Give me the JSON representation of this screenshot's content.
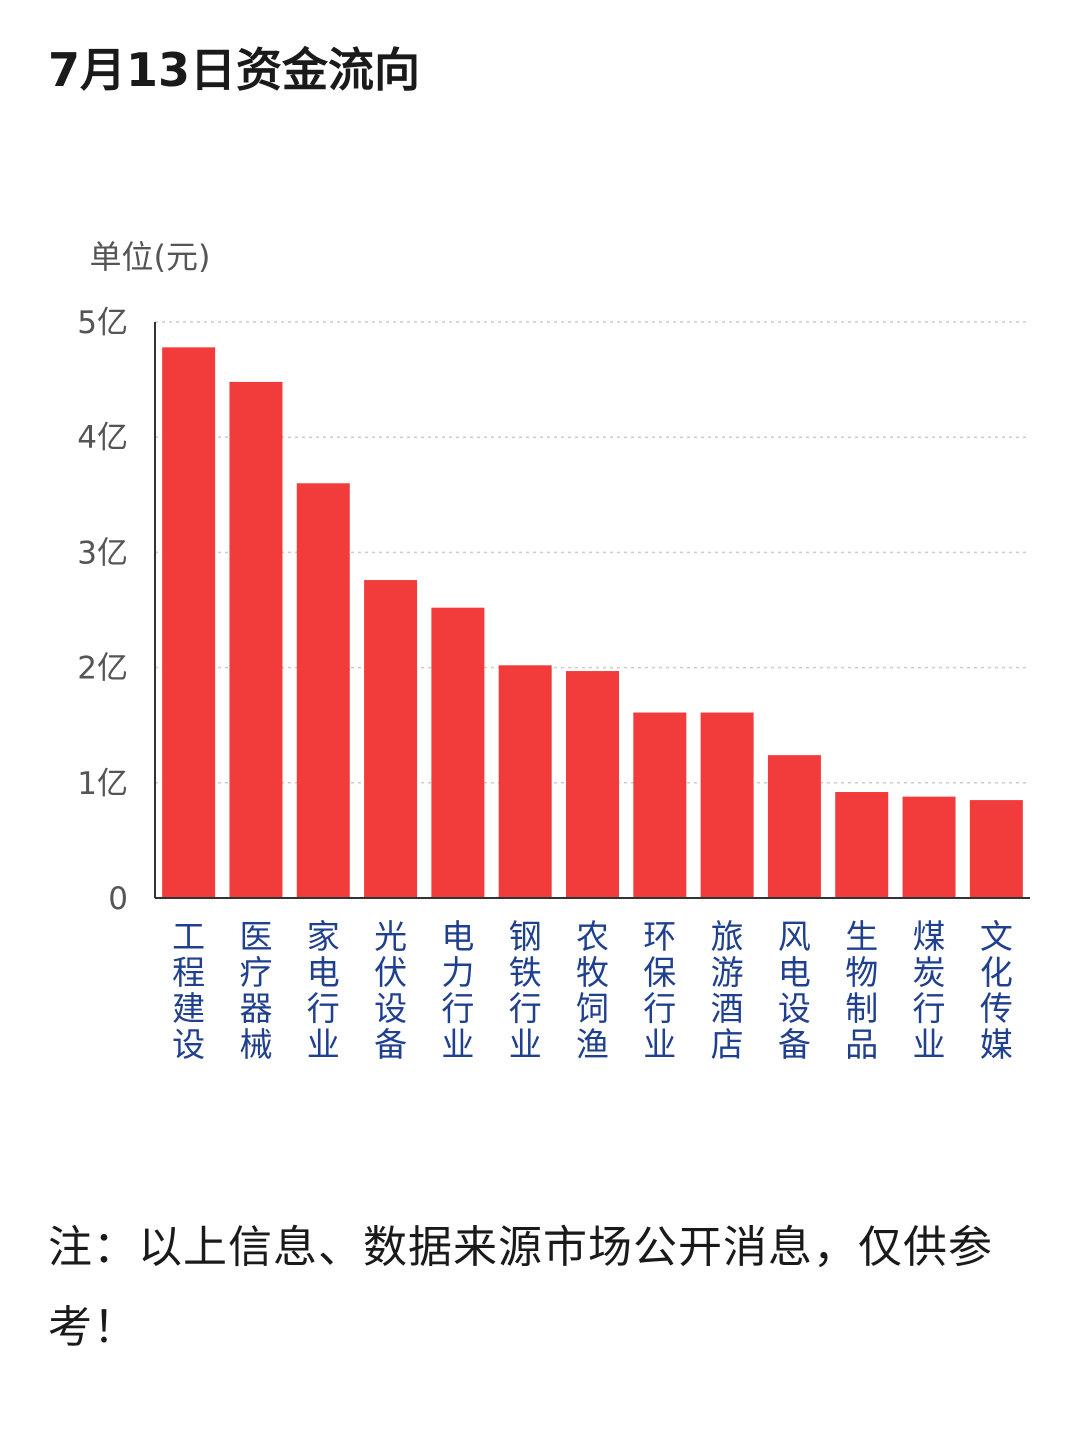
{
  "title": "7月13日资金流向",
  "note": "注：以上信息、数据来源市场公开消息，仅供参考！",
  "chart_data": {
    "type": "bar",
    "unit_label": "单位(元)",
    "categories": [
      "工程建设",
      "医疗器械",
      "家电行业",
      "光伏设备",
      "电力行业",
      "钢铁行业",
      "农牧饲渔",
      "环保行业",
      "旅游酒店",
      "风电设备",
      "生物制品",
      "煤炭行业",
      "文化传媒"
    ],
    "values": [
      4.78,
      4.48,
      3.6,
      2.76,
      2.52,
      2.02,
      1.97,
      1.61,
      1.61,
      1.24,
      0.92,
      0.88,
      0.85
    ],
    "ylim": [
      0,
      5
    ],
    "yticks": [
      0,
      1,
      2,
      3,
      4,
      5
    ],
    "ytick_labels": [
      "0",
      "1亿",
      "2亿",
      "3亿",
      "4亿",
      "5亿"
    ],
    "grid": true,
    "bar_color": "#f23c3c",
    "category_label_color": "#1f3f8f",
    "tick_label_color": "#555555",
    "grid_color": "#cccccc"
  }
}
